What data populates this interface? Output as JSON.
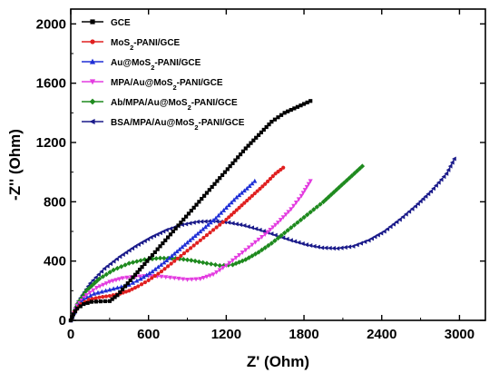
{
  "chart_data": {
    "type": "scatter",
    "xlabel": "Z' (Ohm)",
    "ylabel": "-Z'' (Ohm)",
    "xlim": [
      0,
      3200
    ],
    "ylim": [
      0,
      2100
    ],
    "xticks": [
      0,
      600,
      1200,
      1800,
      2400,
      3000
    ],
    "yticks": [
      0,
      400,
      800,
      1200,
      1600,
      2000
    ],
    "xtick_labels": [
      "0",
      "600",
      "1200",
      "1800",
      "2400",
      "3000"
    ],
    "ytick_labels": [
      "0",
      "400",
      "800",
      "1200",
      "1600",
      "2000"
    ],
    "legend_position": "top-left",
    "series": [
      {
        "name_parts": [
          {
            "t": "GCE"
          }
        ],
        "color": "#000000",
        "marker": "square",
        "x": [
          0,
          20,
          50,
          100,
          160,
          230,
          300,
          360,
          420,
          480,
          550,
          650,
          750,
          850,
          950,
          1050,
          1150,
          1250,
          1350,
          1450,
          1550,
          1650,
          1750,
          1850
        ],
        "y": [
          0,
          40,
          80,
          110,
          125,
          128,
          130,
          170,
          230,
          290,
          360,
          460,
          560,
          660,
          760,
          860,
          960,
          1060,
          1160,
          1250,
          1340,
          1400,
          1440,
          1480
        ]
      },
      {
        "name_parts": [
          {
            "t": "MoS"
          },
          {
            "t": "2",
            "sub": true
          },
          {
            "t": "-PANI/GCE"
          }
        ],
        "color": "#e02020",
        "marker": "circle",
        "x": [
          0,
          30,
          80,
          140,
          220,
          300,
          380,
          450,
          520,
          600,
          700,
          800,
          900,
          1000,
          1100,
          1200,
          1300,
          1400,
          1500,
          1580,
          1640
        ],
        "y": [
          0,
          60,
          110,
          140,
          155,
          165,
          180,
          200,
          230,
          270,
          330,
          400,
          470,
          540,
          610,
          680,
          760,
          840,
          920,
          990,
          1030
        ]
      },
      {
        "name_parts": [
          {
            "t": "Au@MoS"
          },
          {
            "t": "2",
            "sub": true
          },
          {
            "t": "-PANI/GCE"
          }
        ],
        "color": "#1f2fd6",
        "marker": "triangle-up",
        "x": [
          0,
          40,
          100,
          180,
          270,
          360,
          450,
          540,
          630,
          720,
          800,
          880,
          960,
          1040,
          1120,
          1200,
          1280,
          1360,
          1420
        ],
        "y": [
          0,
          80,
          140,
          180,
          200,
          220,
          240,
          280,
          330,
          390,
          450,
          510,
          570,
          630,
          690,
          760,
          830,
          890,
          940
        ]
      },
      {
        "name_parts": [
          {
            "t": "MPA/Au@MoS"
          },
          {
            "t": "2",
            "sub": true
          },
          {
            "t": "-PANI/GCE"
          }
        ],
        "color": "#e33ce0",
        "marker": "triangle-down",
        "x": [
          0,
          50,
          120,
          200,
          300,
          400,
          500,
          600,
          700,
          800,
          900,
          1000,
          1100,
          1200,
          1300,
          1400,
          1500,
          1600,
          1700,
          1780,
          1850
        ],
        "y": [
          0,
          100,
          170,
          220,
          260,
          285,
          295,
          300,
          295,
          285,
          275,
          280,
          310,
          370,
          440,
          510,
          580,
          660,
          750,
          840,
          940
        ]
      },
      {
        "name_parts": [
          {
            "t": "Ab/MPA/Au@MoS"
          },
          {
            "t": "2",
            "sub": true
          },
          {
            "t": "-PANI/GCE"
          }
        ],
        "color": "#1e8a1e",
        "marker": "diamond",
        "x": [
          0,
          50,
          120,
          220,
          330,
          450,
          570,
          690,
          810,
          930,
          1050,
          1150,
          1250,
          1350,
          1450,
          1550,
          1650,
          1750,
          1850,
          1950,
          2050,
          2150,
          2250
        ],
        "y": [
          0,
          110,
          200,
          280,
          340,
          385,
          410,
          420,
          418,
          405,
          385,
          370,
          375,
          410,
          460,
          520,
          590,
          660,
          730,
          800,
          880,
          960,
          1040
        ]
      },
      {
        "name_parts": [
          {
            "t": "BSA/MPA/Au@MoS"
          },
          {
            "t": "2",
            "sub": true
          },
          {
            "t": "-PANI/GCE"
          }
        ],
        "color": "#1a1a8a",
        "marker": "triangle-left",
        "x": [
          0,
          60,
          150,
          260,
          380,
          500,
          620,
          740,
          860,
          980,
          1100,
          1220,
          1340,
          1460,
          1580,
          1700,
          1820,
          1940,
          2060,
          2180,
          2300,
          2420,
          2540,
          2660,
          2780,
          2900,
          2960
        ],
        "y": [
          0,
          130,
          250,
          350,
          430,
          500,
          560,
          610,
          645,
          665,
          670,
          660,
          640,
          610,
          575,
          540,
          510,
          490,
          485,
          500,
          540,
          600,
          680,
          770,
          870,
          990,
          1090
        ]
      }
    ]
  }
}
